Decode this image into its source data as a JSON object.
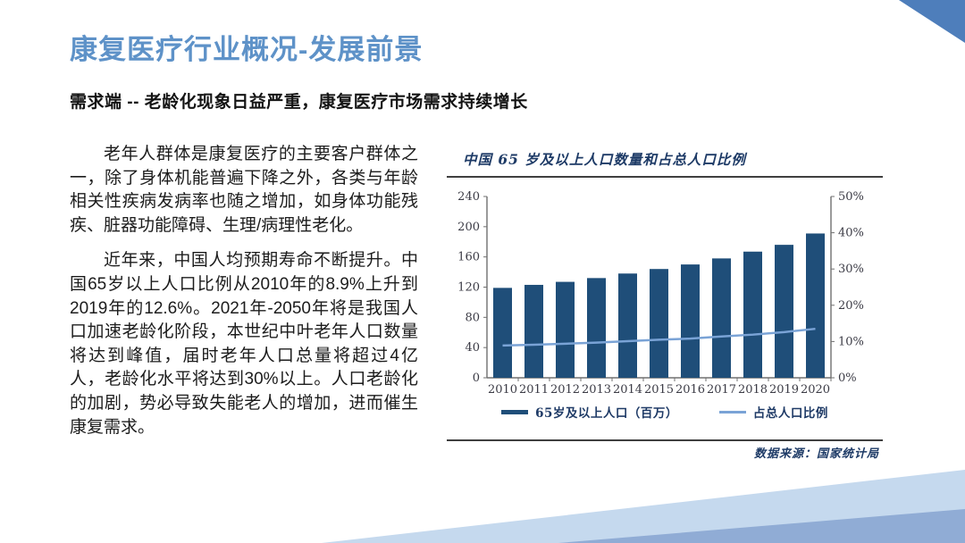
{
  "header": {
    "title": "康复医疗行业概况-发展前景",
    "subtitle": "需求端 -- 老龄化现象日益严重，康复医疗市场需求持续增长"
  },
  "body": {
    "paragraphs": [
      "老年人群体是康复医疗的主要客户群体之一，除了身体机能普遍下降之外，各类与年龄相关性疾病发病率也随之增加，如身体功能残疾、脏器功能障碍、生理/病理性老化。",
      "近年来，中国人均预期寿命不断提升。中国65岁以上人口比例从2010年的8.9%上升到2019年的12.6%。2021年-2050年将是我国人口加速老龄化阶段，本世纪中叶老年人口数量将达到峰值，届时老年人口总量将超过4亿人，老龄化水平将达到30%以上。人口老龄化的加剧，势必导致失能老人的增加，进而催生康复需求。"
    ]
  },
  "chart": {
    "title": "中国 65 岁及以上人口数量和占总人口比例",
    "source": "数据来源：国家统计局",
    "legend": [
      {
        "label": "65岁及以上人口（百万）"
      },
      {
        "label": "占总人口比例"
      }
    ]
  },
  "chart_data": {
    "type": "bar",
    "title": "中国 65 岁及以上人口数量和占总人口比例",
    "categories": [
      "2010",
      "2011",
      "2012",
      "2013",
      "2014",
      "2015",
      "2016",
      "2017",
      "2018",
      "2019",
      "2020"
    ],
    "series": [
      {
        "name": "65岁及以上人口（百万）",
        "type": "bar",
        "axis": "left",
        "values": [
          119,
          123,
          127,
          132,
          138,
          144,
          150,
          158,
          167,
          176,
          191
        ]
      },
      {
        "name": "占总人口比例",
        "type": "line",
        "axis": "right",
        "values": [
          8.9,
          9.1,
          9.4,
          9.7,
          10.1,
          10.5,
          10.8,
          11.4,
          11.9,
          12.6,
          13.5
        ]
      }
    ],
    "left_axis": {
      "ticks": [
        0,
        40,
        80,
        120,
        160,
        200,
        240
      ],
      "range": [
        0,
        240
      ]
    },
    "right_axis": {
      "tick_labels": [
        "0%",
        "10%",
        "20%",
        "30%",
        "40%",
        "50%"
      ],
      "tick_values": [
        0,
        10,
        20,
        30,
        40,
        50
      ],
      "range": [
        0,
        50
      ]
    },
    "legend_position": "bottom",
    "grid": false
  },
  "colors": {
    "title_blue": "#5E92C8",
    "bar": "#1F4E79",
    "line": "#7AA3D6",
    "axis": "#707070",
    "corner_triangle": "#4E7EBB",
    "band_light": "#C5D9EE",
    "band_medium": "#90ACD5"
  }
}
